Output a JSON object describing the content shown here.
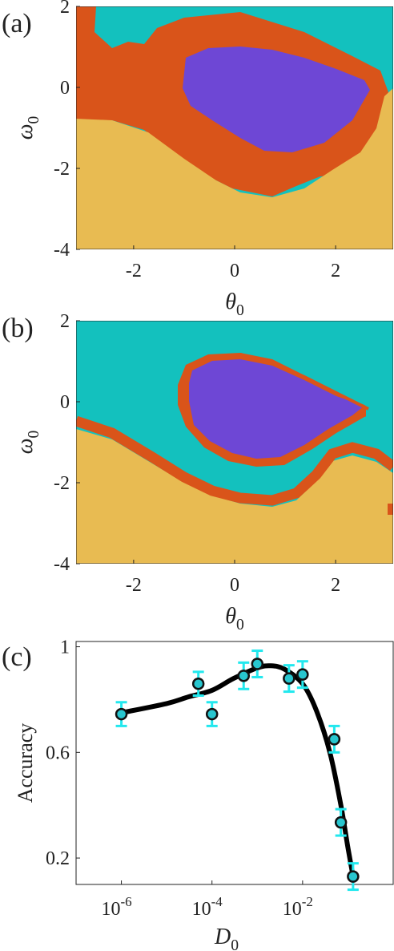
{
  "colors": {
    "cyan_region": "#13C1BE",
    "orange_region": "#D9541A",
    "purple_region": "#6E47D5",
    "yellow_region": "#E8BB52",
    "errorbar": "#22E8EE",
    "marker_face": "#28C6CF",
    "curve": "#000000"
  },
  "chart_data": [
    {
      "panel_label": "(a)",
      "type": "heatmap",
      "xlabel": "θ",
      "xlabel_sub": "0",
      "ylabel": "ω",
      "ylabel_sub": "0",
      "xlim": [
        -3.14,
        3.14
      ],
      "ylim": [
        -4,
        2
      ],
      "xticks": [
        "-2",
        "0",
        "2"
      ],
      "yticks": [
        "2",
        "0",
        "-2",
        "-4"
      ],
      "xtick_values": [
        -2,
        0,
        2
      ],
      "ytick_values": [
        2,
        0,
        -2,
        -4
      ],
      "regions": [
        "cyan",
        "orange",
        "purple",
        "yellow"
      ]
    },
    {
      "panel_label": "(b)",
      "type": "heatmap",
      "xlabel": "θ",
      "xlabel_sub": "0",
      "ylabel": "ω",
      "ylabel_sub": "0",
      "xlim": [
        -3.14,
        3.14
      ],
      "ylim": [
        -4,
        2
      ],
      "xticks": [
        "-2",
        "0",
        "2"
      ],
      "yticks": [
        "2",
        "0",
        "-2",
        "-4"
      ],
      "xtick_values": [
        -2,
        0,
        2
      ],
      "ytick_values": [
        2,
        0,
        -2,
        -4
      ],
      "regions": [
        "cyan",
        "orange",
        "purple",
        "yellow"
      ]
    },
    {
      "panel_label": "(c)",
      "type": "scatter",
      "xscale": "log",
      "xlabel": "D",
      "xlabel_sub": "0",
      "ylabel": "Accuracy",
      "xlim": [
        1e-07,
        1
      ],
      "ylim": [
        0.1,
        1.02
      ],
      "xticks": [
        {
          "base": "10",
          "exp": "-6",
          "value": 1e-06
        },
        {
          "base": "10",
          "exp": "-4",
          "value": 0.0001
        },
        {
          "base": "10",
          "exp": "-2",
          "value": 0.01
        }
      ],
      "yticks": [
        {
          "label": "1",
          "value": 1.0
        },
        {
          "label": "0.6",
          "value": 0.6
        },
        {
          "label": "0.2",
          "value": 0.2
        }
      ],
      "points": [
        {
          "x": 1e-06,
          "y": 0.745,
          "err": 0.045
        },
        {
          "x": 5e-05,
          "y": 0.86,
          "err": 0.045
        },
        {
          "x": 0.0001,
          "y": 0.745,
          "err": 0.045
        },
        {
          "x": 0.0005,
          "y": 0.89,
          "err": 0.05
        },
        {
          "x": 0.001,
          "y": 0.935,
          "err": 0.05
        },
        {
          "x": 0.005,
          "y": 0.88,
          "err": 0.05
        },
        {
          "x": 0.01,
          "y": 0.895,
          "err": 0.05
        },
        {
          "x": 0.05,
          "y": 0.65,
          "err": 0.05
        },
        {
          "x": 0.07,
          "y": 0.335,
          "err": 0.05
        },
        {
          "x": 0.13,
          "y": 0.13,
          "err": 0.05
        }
      ],
      "fit_curve": [
        [
          1e-06,
          0.75
        ],
        [
          1e-05,
          0.785
        ],
        [
          3e-05,
          0.81
        ],
        [
          0.0001,
          0.835
        ],
        [
          0.0003,
          0.88
        ],
        [
          0.001,
          0.92
        ],
        [
          0.002,
          0.928
        ],
        [
          0.004,
          0.915
        ],
        [
          0.01,
          0.86
        ],
        [
          0.02,
          0.76
        ],
        [
          0.04,
          0.6
        ],
        [
          0.07,
          0.4
        ],
        [
          0.1,
          0.24
        ],
        [
          0.13,
          0.13
        ]
      ]
    }
  ]
}
